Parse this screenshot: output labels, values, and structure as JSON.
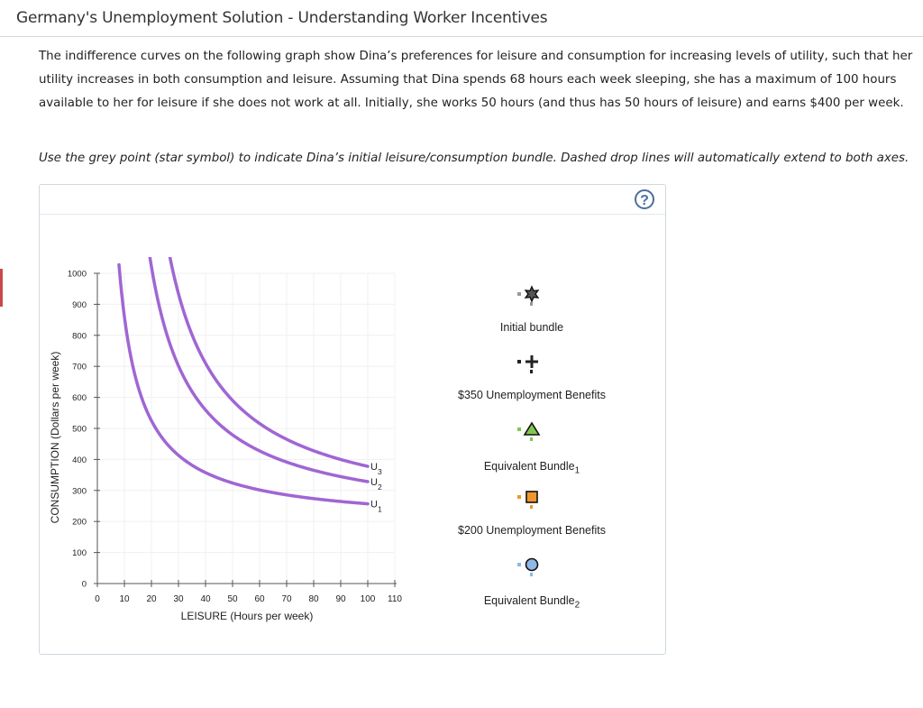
{
  "page": {
    "title": "Germany's Unemployment Solution - Understanding Worker Incentives",
    "intro": "The indifference curves on the following graph show Dina’s preferences for leisure and consumption for increasing levels of utility, such that her utility increases in both consumption and leisure. Assuming that Dina spends 68 hours each week sleeping, she has a maximum of 100 hours available to her for leisure if she does not work at all. Initially, she works 50 hours (and thus has 50 hours of leisure) and earns $400 per week.",
    "instruction": "Use the grey point (star symbol) to indicate Dina’s initial leisure/consumption bundle. Dashed drop lines will automatically extend to both axes.",
    "help_symbol": "?"
  },
  "graph": {
    "ylabel": "CONSUMPTION (Dollars per week)",
    "xlabel": "LEISURE (Hours per week)",
    "y_ticks": [
      "0",
      "100",
      "200",
      "300",
      "400",
      "500",
      "600",
      "700",
      "800",
      "900",
      "1000"
    ],
    "x_ticks": [
      "0",
      "10",
      "20",
      "30",
      "40",
      "50",
      "60",
      "70",
      "80",
      "90",
      "100",
      "110"
    ],
    "curve_color": "#a066d3",
    "curves": [
      {
        "label": "U",
        "sub": "1",
        "k": 6700,
        "a": 0,
        "b": 190,
        "xmin": 8,
        "xmax": 100
      },
      {
        "label": "U",
        "sub": "2",
        "k": 13300,
        "a": 4,
        "b": 190,
        "xmin": 14,
        "xmax": 100
      },
      {
        "label": "U",
        "sub": "3",
        "k": 17000,
        "a": 7,
        "b": 195,
        "xmin": 21,
        "xmax": 100
      }
    ]
  },
  "legend": [
    {
      "label": "Initial bundle",
      "sub": "",
      "icon": "star-icon",
      "color": "#333333"
    },
    {
      "label": "$350 Unemployment Benefits",
      "sub": "",
      "icon": "plus-icon",
      "color": "#222222"
    },
    {
      "label": "Equivalent Bundle",
      "sub": "1",
      "icon": "triangle-icon",
      "color": "#7ec850"
    },
    {
      "label": "$200 Unemployment Benefits",
      "sub": "",
      "icon": "square-icon",
      "color": "#f0962e"
    },
    {
      "label": "Equivalent Bundle",
      "sub": "2",
      "icon": "circle-icon",
      "color": "#8fb8e6"
    }
  ]
}
